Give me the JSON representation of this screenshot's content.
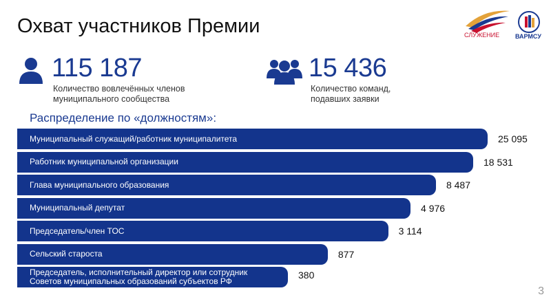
{
  "header": {
    "title": "Охват участников Премии",
    "logo_left": "СЛУЖЕНИЕ",
    "logo_right": "ВАРМСУ"
  },
  "stats": [
    {
      "value": "115 187",
      "label": "Количество вовлечённых членов\nмуниципального сообщества"
    },
    {
      "value": "15 436",
      "label": "Количество команд,\nподавших заявки"
    }
  ],
  "chart_data": {
    "type": "bar",
    "orientation": "horizontal",
    "log_scale": true,
    "title": "Распределение по «должностям»:",
    "color": "#13348c",
    "categories": [
      "Муниципальный служащий/работник муниципалитета",
      "Работник муниципальной организации",
      "Глава муниципального образования",
      "Муниципальный депутат",
      "Председатель/член ТОС",
      "Сельский староста",
      "Председатель, исполнительный директор или сотрудник\nСоветов муниципальных образований субъектов РФ"
    ],
    "values": [
      25095,
      18531,
      8487,
      4976,
      3114,
      877,
      380
    ],
    "value_labels": [
      "25 095",
      "18 531",
      "8 487",
      "4 976",
      "3 114",
      "877",
      "380"
    ]
  },
  "footer": {
    "page": "3"
  }
}
